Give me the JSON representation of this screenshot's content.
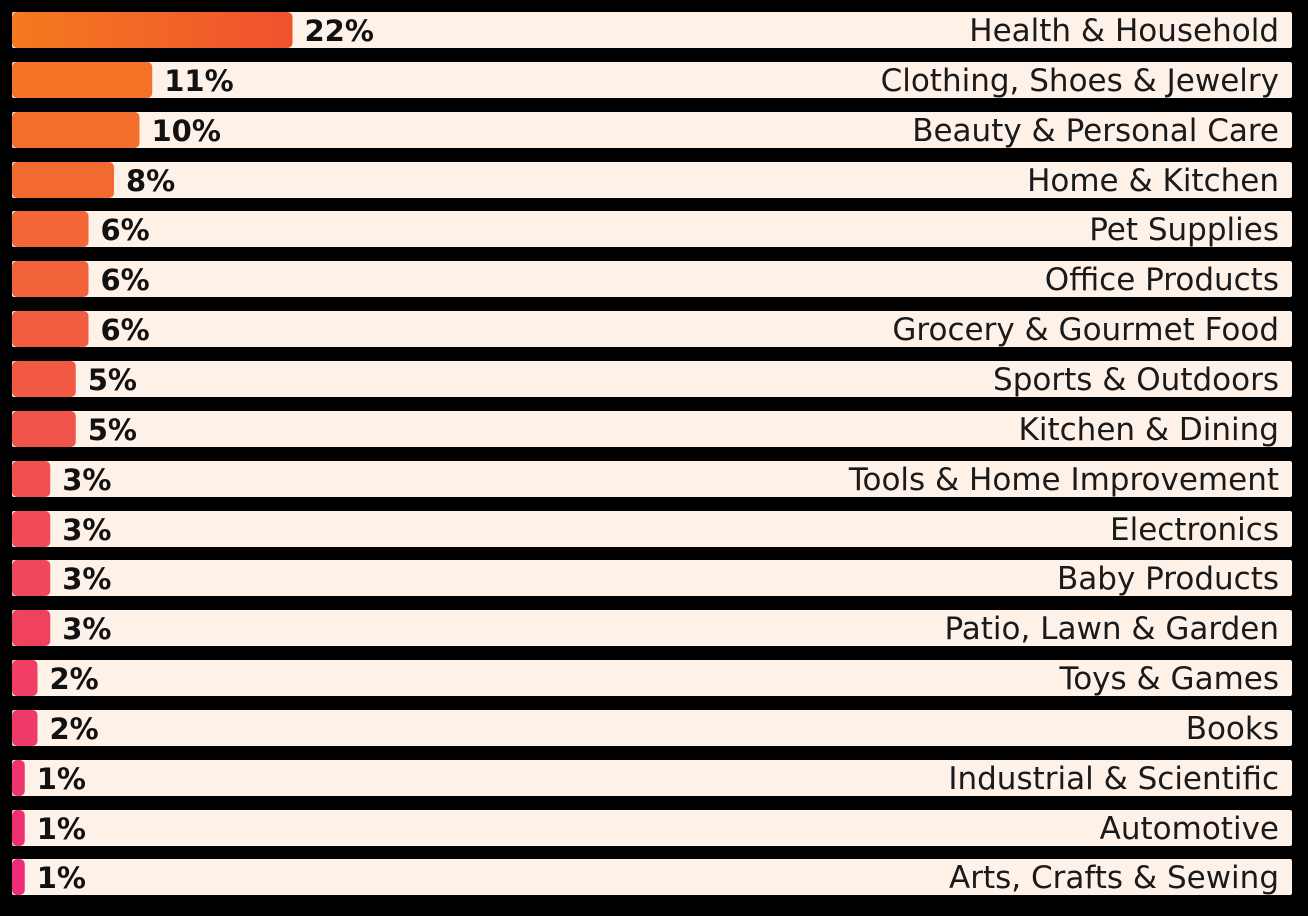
{
  "chart_data": {
    "type": "bar",
    "orientation": "horizontal",
    "categories": [
      "Health & Household",
      "Clothing, Shoes & Jewelry",
      "Beauty & Personal Care",
      "Home & Kitchen",
      "Pet Supplies",
      "Office Products",
      "Grocery & Gourmet Food",
      "Sports & Outdoors",
      "Kitchen & Dining",
      "Tools & Home Improvement",
      "Electronics",
      "Baby Products",
      "Patio, Lawn & Garden",
      "Toys & Games",
      "Books",
      "Industrial & Scientific",
      "Automotive",
      "Arts, Crafts & Sewing"
    ],
    "values": [
      22,
      11,
      10,
      8,
      6,
      6,
      6,
      5,
      5,
      3,
      3,
      3,
      3,
      2,
      2,
      1,
      1,
      1
    ],
    "value_labels": [
      "22%",
      "11%",
      "10%",
      "8%",
      "6%",
      "6%",
      "6%",
      "5%",
      "5%",
      "3%",
      "3%",
      "3%",
      "3%",
      "2%",
      "2%",
      "1%",
      "1%",
      "1%"
    ],
    "unit": "%",
    "gradient_colors": [
      "#f47a1f",
      "#ee2a7b"
    ],
    "track_color": "#fdf1e8",
    "background_color": "#000000",
    "grid": false,
    "legend": "none"
  }
}
